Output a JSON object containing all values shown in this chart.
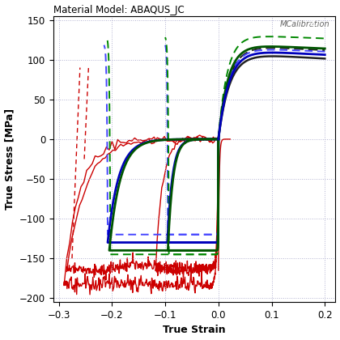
{
  "title": "Material Model: ABAQUS_JC",
  "xlabel": "True Strain",
  "ylabel": "True Stress [MPa]",
  "xlim": [
    -0.31,
    0.22
  ],
  "ylim": [
    -205,
    155
  ],
  "xticks": [
    -0.3,
    -0.2,
    -0.1,
    0.0,
    0.1,
    0.2
  ],
  "yticks": [
    -200,
    -150,
    -100,
    -50,
    0,
    50,
    100,
    150
  ],
  "background_color": "#ffffff",
  "grid_color": "#aaaacc",
  "logo_text": "MCalibration",
  "colors": {
    "red": "#cc0000",
    "blue_solid": "#0000bb",
    "blue_dashed": "#4444ff",
    "green_solid": "#005500",
    "green_dashed": "#008800",
    "black": "#222222"
  }
}
